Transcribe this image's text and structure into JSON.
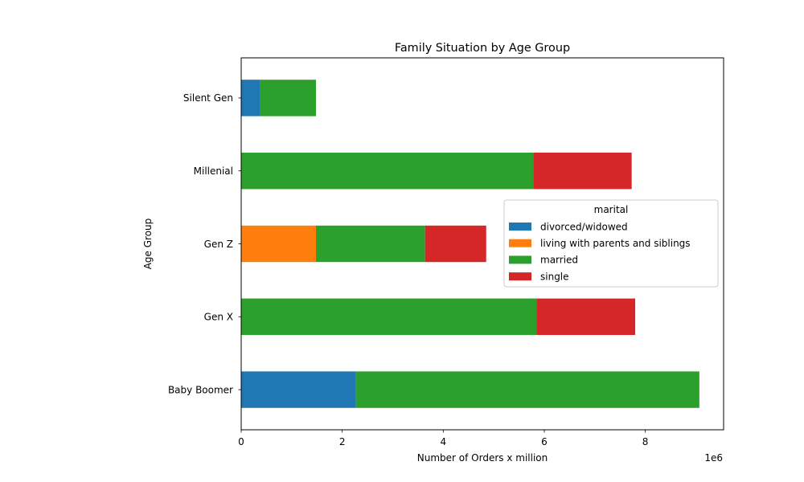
{
  "chart_data": {
    "type": "bar",
    "orientation": "horizontal",
    "stacked": true,
    "title": "Family Situation by Age Group",
    "xlabel": "Number of Orders x million",
    "ylabel": "Age Group",
    "x_offset_label": "1e6",
    "xlim": [
      0,
      9.55
    ],
    "x_ticks": [
      "0",
      "2",
      "4",
      "6",
      "8"
    ],
    "categories": [
      "Baby Boomer",
      "Gen X",
      "Gen Z",
      "Millenial",
      "Silent Gen"
    ],
    "legend": {
      "title": "marital",
      "placement": "center-right"
    },
    "grid": false,
    "series": [
      {
        "name": "divorced/widowed",
        "color": "#1f77b4",
        "values": [
          2.27,
          0,
          0,
          0,
          0.38
        ]
      },
      {
        "name": "living with parents and siblings",
        "color": "#ff7f0e",
        "values": [
          0,
          0,
          1.48,
          0,
          0
        ]
      },
      {
        "name": "married",
        "color": "#2ca02c",
        "values": [
          6.8,
          5.85,
          2.16,
          5.78,
          1.1
        ]
      },
      {
        "name": "single",
        "color": "#d62728",
        "values": [
          0,
          1.95,
          1.21,
          1.95,
          0
        ]
      }
    ]
  }
}
